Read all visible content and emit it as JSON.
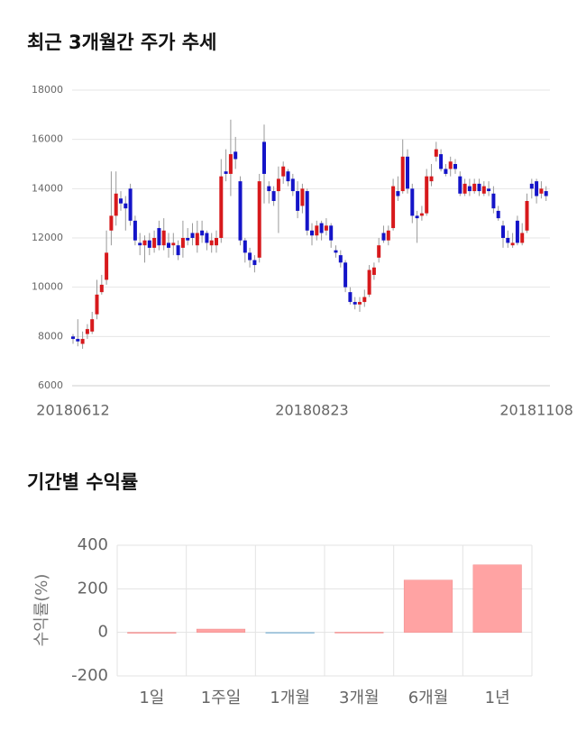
{
  "chart_data": [
    {
      "type": "candlestick",
      "title": "최근 3개월간 주가 추세",
      "categories": [
        "20180612",
        null,
        null,
        null,
        null,
        null,
        null,
        null,
        null,
        null,
        null,
        null,
        null,
        null,
        null,
        null,
        null,
        null,
        null,
        null,
        null,
        null,
        null,
        null,
        null,
        null,
        null,
        null,
        null,
        null,
        null,
        null,
        null,
        null,
        null,
        null,
        null,
        null,
        null,
        null,
        null,
        null,
        null,
        null,
        null,
        null,
        null,
        null,
        null,
        null,
        "20180823",
        null,
        null,
        null,
        null,
        null,
        null,
        null,
        null,
        null,
        null,
        null,
        null,
        null,
        null,
        null,
        null,
        null,
        null,
        null,
        null,
        null,
        null,
        null,
        null,
        null,
        null,
        null,
        null,
        null,
        null,
        null,
        null,
        null,
        null,
        null,
        null,
        null,
        null,
        null,
        null,
        null,
        null,
        null,
        null,
        null,
        null,
        "20181108",
        null,
        null
      ],
      "open": [
        8000,
        7900,
        7700,
        8100,
        8200,
        8900,
        9800,
        10300,
        12300,
        12900,
        13600,
        13400,
        14000,
        12700,
        11800,
        11700,
        11900,
        11600,
        12400,
        11700,
        11800,
        11700,
        11700,
        11600,
        12000,
        12200,
        11700,
        12300,
        12200,
        11700,
        11700,
        12000,
        14700,
        14600,
        15500,
        14300,
        11900,
        11400,
        11100,
        11200,
        15900,
        14100,
        13900,
        13900,
        14500,
        14700,
        14400,
        13900,
        13300,
        13900,
        12300,
        12100,
        12600,
        12300,
        12500,
        11500,
        11300,
        11000,
        9800,
        9400,
        9300,
        9400,
        9700,
        10500,
        11200,
        12200,
        11900,
        12400,
        13900,
        13900,
        15300,
        14000,
        12900,
        12900,
        13000,
        14300,
        15300,
        15400,
        14800,
        14800,
        15000,
        14500,
        13800,
        14100,
        13900,
        14200,
        13800,
        14000,
        13800,
        13100,
        12500,
        12000,
        11700,
        12700,
        11800,
        12300,
        14200,
        14300,
        13800,
        13900
      ],
      "high": [
        8100,
        8700,
        8200,
        8500,
        9000,
        10300,
        10500,
        12300,
        14700,
        14700,
        13900,
        13700,
        14200,
        12900,
        12200,
        12100,
        12200,
        12300,
        12700,
        12800,
        12200,
        12200,
        11900,
        12700,
        12400,
        12600,
        12700,
        12700,
        12300,
        12200,
        12300,
        15200,
        15600,
        16800,
        16100,
        14500,
        12000,
        11600,
        11300,
        14600,
        16600,
        14300,
        14100,
        14900,
        15100,
        14800,
        14600,
        14300,
        14200,
        14000,
        12600,
        12700,
        12700,
        12800,
        12600,
        11700,
        11500,
        11100,
        10000,
        9600,
        9600,
        9900,
        10900,
        11000,
        12000,
        12500,
        12500,
        14400,
        14500,
        16000,
        15600,
        14200,
        13100,
        13300,
        14800,
        15000,
        15900,
        15600,
        15000,
        15300,
        15200,
        14700,
        14400,
        14400,
        14400,
        14400,
        14300,
        14300,
        14100,
        13300,
        12700,
        12300,
        12200,
        12900,
        12600,
        13800,
        14400,
        14400,
        14300,
        14100
      ],
      "low": [
        7700,
        7600,
        7500,
        7900,
        8100,
        8700,
        9700,
        10100,
        11700,
        12500,
        13100,
        12300,
        12500,
        11700,
        11300,
        11000,
        11300,
        11400,
        11500,
        11500,
        11200,
        11300,
        11100,
        11200,
        11700,
        11700,
        11400,
        11800,
        11500,
        11400,
        11400,
        11800,
        14300,
        13700,
        14800,
        11700,
        11000,
        10800,
        10600,
        11000,
        13400,
        13400,
        13300,
        12200,
        14200,
        14100,
        13700,
        12800,
        13000,
        12100,
        11700,
        11900,
        11900,
        12100,
        11600,
        11200,
        10800,
        9800,
        9300,
        9100,
        9000,
        9200,
        9600,
        10300,
        11000,
        11800,
        11700,
        12300,
        13500,
        13800,
        13800,
        12600,
        11800,
        12700,
        12900,
        14100,
        15100,
        14700,
        14500,
        14500,
        14600,
        13700,
        13700,
        13700,
        13800,
        13700,
        13700,
        13700,
        13000,
        12700,
        11600,
        11600,
        11600,
        11700,
        11700,
        12200,
        13600,
        13400,
        13600,
        13500
      ],
      "close": [
        7900,
        7800,
        7900,
        8300,
        8700,
        9700,
        10100,
        11400,
        12900,
        13800,
        13400,
        13200,
        12700,
        11900,
        11700,
        11900,
        11600,
        12000,
        11700,
        12300,
        11600,
        11800,
        11300,
        12000,
        11900,
        12000,
        12200,
        12100,
        11800,
        11900,
        12000,
        14500,
        14600,
        15400,
        15200,
        11900,
        11400,
        11100,
        10900,
        14300,
        14600,
        13900,
        13500,
        14400,
        14900,
        14300,
        13900,
        13100,
        14000,
        12300,
        12100,
        12500,
        12200,
        12500,
        11900,
        11400,
        11000,
        10000,
        9400,
        9300,
        9400,
        9600,
        10700,
        10800,
        11700,
        11900,
        12300,
        14100,
        13700,
        15300,
        14000,
        12900,
        12800,
        13000,
        14500,
        14500,
        15600,
        14800,
        14600,
        15100,
        14800,
        13800,
        14200,
        13900,
        14200,
        13900,
        14100,
        13900,
        13200,
        12800,
        12000,
        11800,
        11800,
        11800,
        12200,
        13500,
        14000,
        13700,
        14000,
        13700
      ],
      "up_color": "#d7191c",
      "down_color": "#1414c8",
      "ylim": [
        6000,
        18000
      ],
      "yticks": [
        6000,
        8000,
        10000,
        12000,
        14000,
        16000,
        18000
      ],
      "grid": true
    },
    {
      "type": "bar",
      "title": "기간별 수익률",
      "y_label": "수익률(%)",
      "categories": [
        "1일",
        "1주일",
        "1개월",
        "3개월",
        "6개월",
        "1년"
      ],
      "values": [
        0,
        15,
        -3,
        1,
        240,
        310
      ],
      "pos_color": "#ffa3a3",
      "neg_color": "#9ec9e2",
      "ylim": [
        -200,
        400
      ],
      "yticks": [
        -200,
        0,
        200,
        400
      ],
      "grid": true
    }
  ]
}
